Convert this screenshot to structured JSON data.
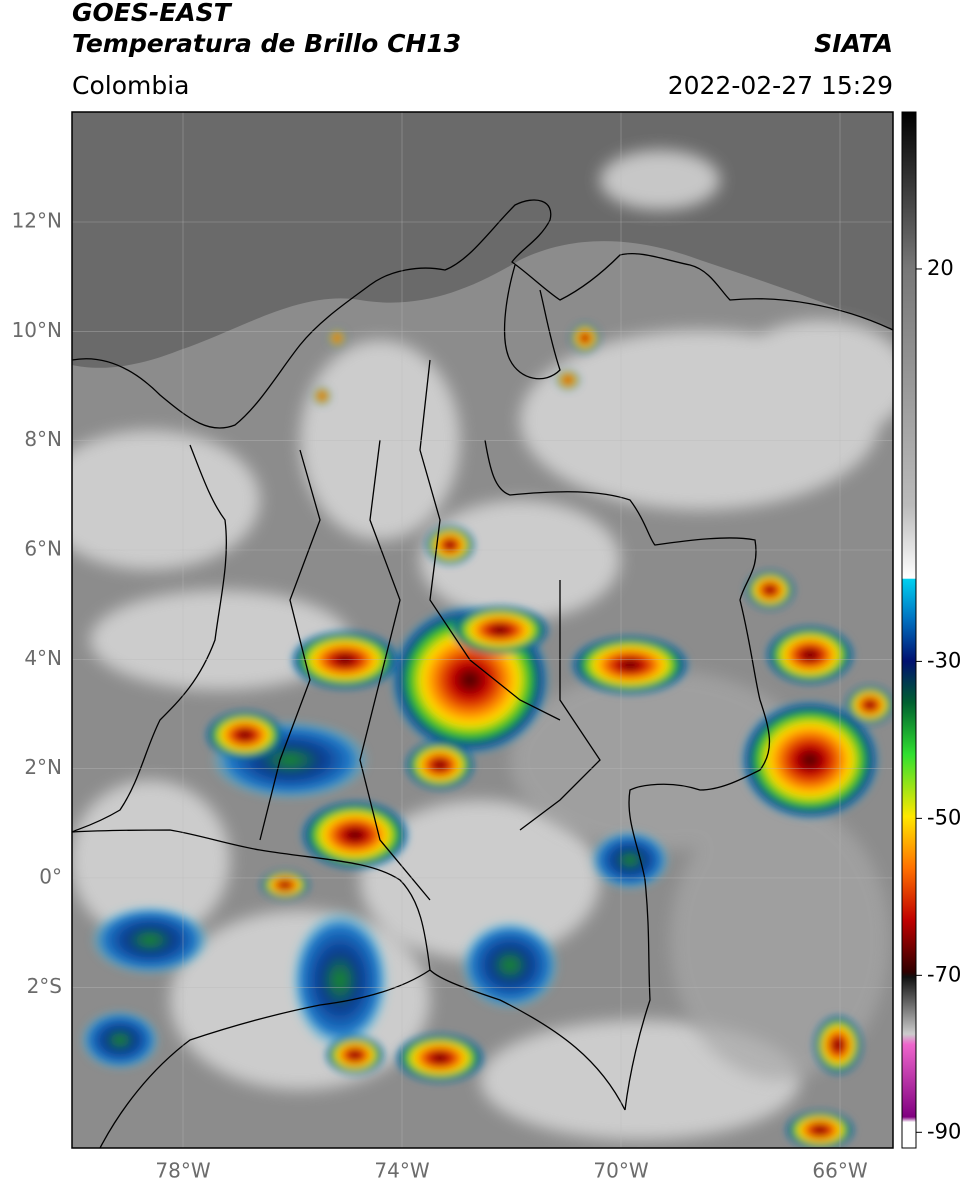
{
  "header": {
    "source": "GOES-EAST",
    "product": "Temperatura de Brillo CH13",
    "organization": "SIATA",
    "region": "Colombia",
    "datetime": "2022-02-27 15:29"
  },
  "map": {
    "lat_ticks": [
      "12°N",
      "10°N",
      "8°N",
      "6°N",
      "4°N",
      "2°N",
      "0°",
      "2°S"
    ],
    "lon_ticks": [
      "78°W",
      "74°W",
      "70°W",
      "66°W"
    ]
  },
  "colorbar": {
    "lim": [
      -92,
      40
    ],
    "ticks": [
      20,
      -30,
      -50,
      -70,
      -90
    ]
  }
}
